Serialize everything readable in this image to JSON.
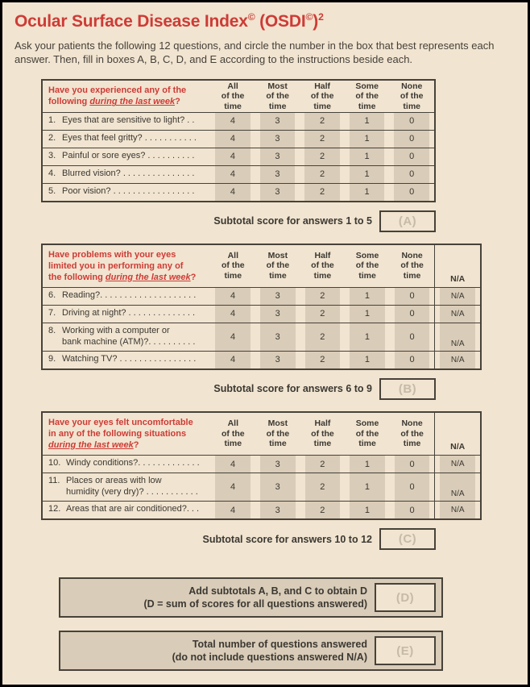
{
  "colors": {
    "red": "#ce3b36",
    "cream": "#f1e4d0",
    "shade": "#d9ccb8",
    "border": "#47423a",
    "ghost_text": "#c6bba7",
    "body_text": "#3b3832"
  },
  "title": {
    "t1": "Ocular Surface Disease Index",
    "sup1": "©",
    "t2": " (OSDI",
    "sup2": "©",
    "t3": ")",
    "sup3": "2"
  },
  "intro": "Ask your patients the following 12 questions, and circle the number in the box that best represents each\nanswer. Then, fill in boxes A, B, C, D, and E according to the instructions beside each.",
  "col_headers": {
    "all": "All\nof the\ntime",
    "most": "Most\nof the\ntime",
    "half": "Half\nof the\ntime",
    "some": "Some\nof the\ntime",
    "none": "None\nof the\ntime",
    "na": "N/A"
  },
  "sections": [
    {
      "heading": {
        "pre": "Have you experienced any of the\nfollowing ",
        "underlined": "during the last week",
        "suffix": "?"
      },
      "rows": [
        {
          "num": "1.",
          "text": "Eyes that are sensitive to light? . .",
          "values": [
            "4",
            "3",
            "2",
            "1",
            "0"
          ]
        },
        {
          "num": "2.",
          "text": "Eyes that feel gritty? . . . . . . . . . . .",
          "values": [
            "4",
            "3",
            "2",
            "1",
            "0"
          ]
        },
        {
          "num": "3.",
          "text": "Painful or sore eyes? . . . . . . . . . .",
          "values": [
            "4",
            "3",
            "2",
            "1",
            "0"
          ]
        },
        {
          "num": "4.",
          "text": "Blurred vision? . . . . . . . . . . . . . . .",
          "values": [
            "4",
            "3",
            "2",
            "1",
            "0"
          ]
        },
        {
          "num": "5.",
          "text": "Poor vision? . . . . . . . . . . . . . . . . .",
          "values": [
            "4",
            "3",
            "2",
            "1",
            "0"
          ]
        }
      ],
      "subtotal": {
        "label": "Subtotal score for answers 1 to 5",
        "box": "(A)"
      }
    },
    {
      "heading": {
        "pre": "Have problems with your eyes\nlimited you in performing any of\nthe following ",
        "underlined": "during the last week",
        "suffix": "?"
      },
      "rows": [
        {
          "num": "6.",
          "text": "Reading?. . . . . . . . . . . . . . . . . . . .",
          "values": [
            "4",
            "3",
            "2",
            "1",
            "0"
          ],
          "na": "N/A"
        },
        {
          "num": "7.",
          "text": "Driving at night? . . . . . . . . . . . . . .",
          "values": [
            "4",
            "3",
            "2",
            "1",
            "0"
          ],
          "na": "N/A"
        },
        {
          "num": "8.",
          "text": "Working with a computer or\nbank machine (ATM)?. . . . . . . . . .",
          "values": [
            "4",
            "3",
            "2",
            "1",
            "0"
          ],
          "na": "N/A"
        },
        {
          "num": "9.",
          "text": "Watching TV? . . . . . . . . . . . . . . . .",
          "values": [
            "4",
            "3",
            "2",
            "1",
            "0"
          ],
          "na": "N/A"
        }
      ],
      "subtotal": {
        "label": "Subtotal score for answers 6 to 9",
        "box": "(B)"
      }
    },
    {
      "heading": {
        "pre": "Have your eyes felt uncomfortable\nin any of the following situations\n",
        "underlined": "during the last week",
        "suffix": "?"
      },
      "rows": [
        {
          "num": "10.",
          "text": "Windy conditions?. . . . . . . . . . . . .",
          "values": [
            "4",
            "3",
            "2",
            "1",
            "0"
          ],
          "na": "N/A"
        },
        {
          "num": "11.",
          "text": "Places or areas with low\nhumidity (very dry)? . . . . . . . . . . .",
          "values": [
            "4",
            "3",
            "2",
            "1",
            "0"
          ],
          "na": "N/A"
        },
        {
          "num": "12.",
          "text": "Areas that are air conditioned?. . .",
          "values": [
            "4",
            "3",
            "2",
            "1",
            "0"
          ],
          "na": "N/A"
        }
      ],
      "subtotal": {
        "label": "Subtotal score for answers 10 to 12",
        "box": "(C)"
      }
    }
  ],
  "totals": [
    {
      "line1": "Add subtotals A, B, and C to obtain D",
      "line2": "(D = sum of scores for all questions answered)",
      "box": "(D)"
    },
    {
      "line1": "Total number of questions answered",
      "line2": "(do not include questions answered N/A)",
      "box": "(E)"
    }
  ]
}
